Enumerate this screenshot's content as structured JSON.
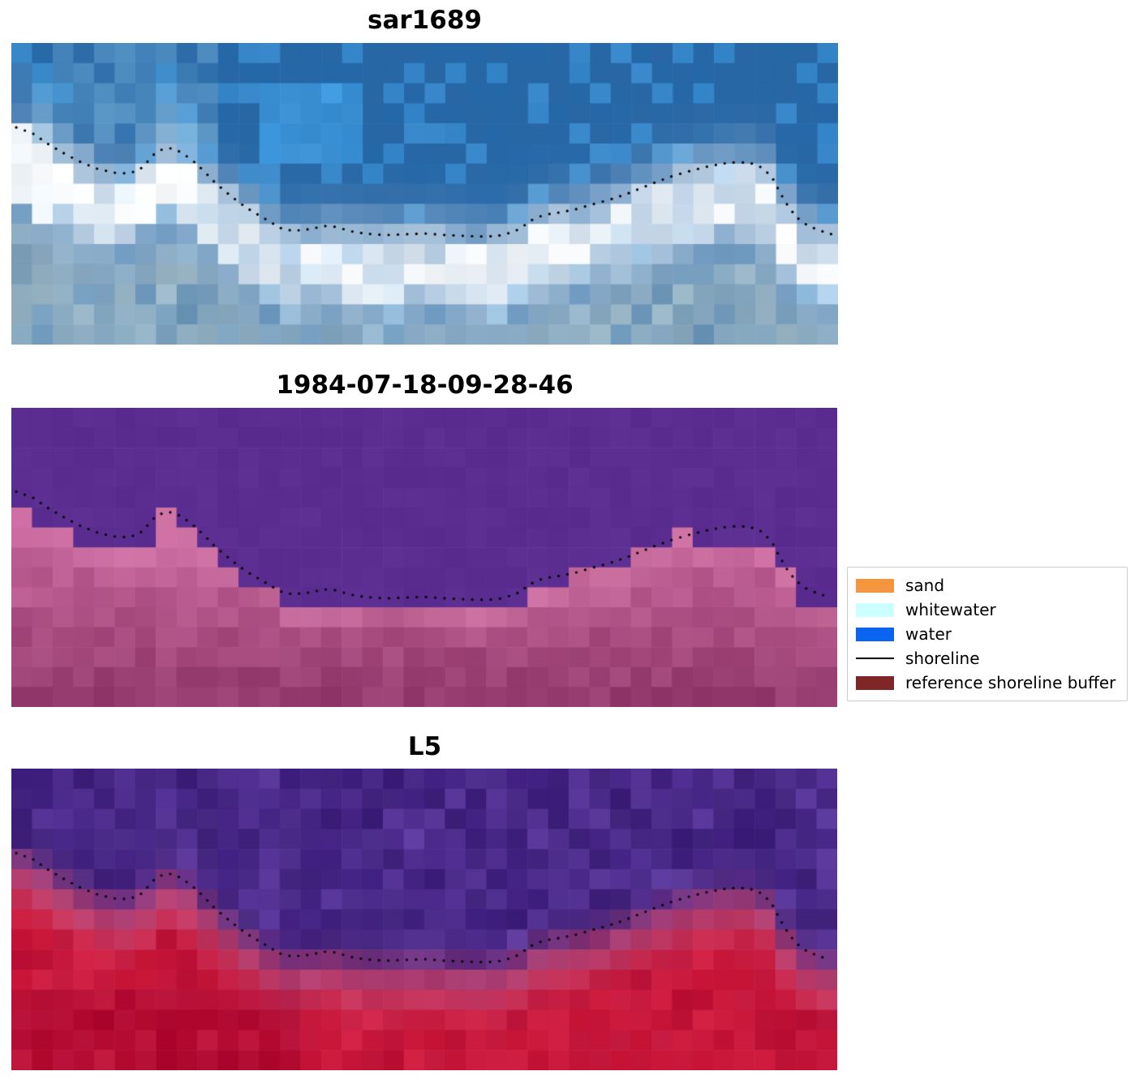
{
  "figure": {
    "background": "#ffffff",
    "panels": [
      {
        "title": "sar1689",
        "type": "sar",
        "palette": {
          "water_base": "#2d70b0",
          "water_dark": "#1f5c9a",
          "water_bright": "#42a0e6",
          "water_light": "#8cc8e8",
          "white": "#fafcfd",
          "lower": "#7da0b9",
          "lower_light": "#a6bfcc"
        }
      },
      {
        "title": "1984-07-18-09-28-46",
        "type": "classified",
        "palette": {
          "water": "#5b2d91",
          "sand_top": "#c8689e",
          "sand_bottom": "#963c6e",
          "sand_light": "#d67cab"
        }
      },
      {
        "title": "L5",
        "type": "l5",
        "palette": {
          "top": "#4b2a8c",
          "top_dark": "#3a1e74",
          "top_light": "#6440a8",
          "red": "#cf1c3e",
          "red_dark": "#a80630",
          "rose": "#d06088"
        }
      }
    ],
    "legend": {
      "items": [
        {
          "label": "sand",
          "color": "#f5953e",
          "type": "patch"
        },
        {
          "label": "whitewater",
          "color": "#ccffff",
          "type": "patch"
        },
        {
          "label": "water",
          "color": "#0b64f0",
          "type": "patch"
        },
        {
          "label": "shoreline",
          "color": "#000000",
          "type": "line"
        },
        {
          "label": "reference shoreline buffer",
          "color": "#7f2626",
          "type": "patch"
        }
      ]
    }
  },
  "chart_data": {
    "type": "heatmap",
    "panels": [
      {
        "title": "sar1689",
        "content": "SAR satellite image, blue water with white shoreline band, dotted mapped shoreline overlaid"
      },
      {
        "title": "1984-07-18-09-28-46",
        "content": "classified image: purple water class above shoreline, pink/magenta buffer region below, dotted mapped shoreline overlaid"
      },
      {
        "title": "L5",
        "content": "Landsat 5 false-colour image: purple upper region, red lower region, dotted mapped shoreline overlaid"
      }
    ],
    "legend_entries": [
      "sand",
      "whitewater",
      "water",
      "shoreline",
      "reference shoreline buffer"
    ],
    "shoreline": {
      "units": "fraction of panel width (x) and panel height (y)",
      "points": [
        [
          0.006,
          0.28
        ],
        [
          0.026,
          0.3
        ],
        [
          0.045,
          0.336
        ],
        [
          0.065,
          0.368
        ],
        [
          0.084,
          0.395
        ],
        [
          0.104,
          0.417
        ],
        [
          0.124,
          0.43
        ],
        [
          0.143,
          0.433
        ],
        [
          0.158,
          0.414
        ],
        [
          0.173,
          0.368
        ],
        [
          0.183,
          0.352
        ],
        [
          0.192,
          0.349
        ],
        [
          0.202,
          0.358
        ],
        [
          0.217,
          0.384
        ],
        [
          0.232,
          0.422
        ],
        [
          0.246,
          0.462
        ],
        [
          0.261,
          0.497
        ],
        [
          0.276,
          0.53
        ],
        [
          0.29,
          0.556
        ],
        [
          0.31,
          0.588
        ],
        [
          0.325,
          0.613
        ],
        [
          0.34,
          0.623
        ],
        [
          0.359,
          0.618
        ],
        [
          0.379,
          0.607
        ],
        [
          0.394,
          0.61
        ],
        [
          0.408,
          0.623
        ],
        [
          0.428,
          0.632
        ],
        [
          0.452,
          0.637
        ],
        [
          0.477,
          0.634
        ],
        [
          0.501,
          0.632
        ],
        [
          0.526,
          0.637
        ],
        [
          0.551,
          0.64
        ],
        [
          0.575,
          0.642
        ],
        [
          0.595,
          0.637
        ],
        [
          0.614,
          0.618
        ],
        [
          0.629,
          0.588
        ],
        [
          0.644,
          0.57
        ],
        [
          0.663,
          0.562
        ],
        [
          0.683,
          0.551
        ],
        [
          0.703,
          0.535
        ],
        [
          0.722,
          0.521
        ],
        [
          0.742,
          0.503
        ],
        [
          0.762,
          0.481
        ],
        [
          0.781,
          0.46
        ],
        [
          0.801,
          0.44
        ],
        [
          0.82,
          0.425
        ],
        [
          0.84,
          0.411
        ],
        [
          0.86,
          0.4
        ],
        [
          0.879,
          0.395
        ],
        [
          0.894,
          0.398
        ],
        [
          0.909,
          0.414
        ],
        [
          0.921,
          0.449
        ],
        [
          0.93,
          0.497
        ],
        [
          0.94,
          0.543
        ],
        [
          0.95,
          0.578
        ],
        [
          0.963,
          0.605
        ],
        [
          0.977,
          0.621
        ],
        [
          0.992,
          0.634
        ]
      ]
    }
  }
}
